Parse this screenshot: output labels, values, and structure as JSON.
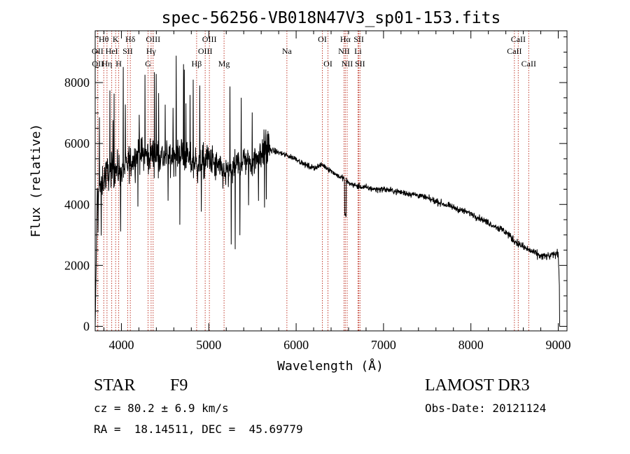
{
  "chart_data": {
    "type": "line",
    "title": "spec-56256-VB018N47V3_sp01-153.fits",
    "xlabel": "Wavelength (Å)",
    "ylabel": "Flux (relative)",
    "xlim": [
      3700,
      9100
    ],
    "ylim": [
      -150,
      9700
    ],
    "xticks": [
      4000,
      5000,
      6000,
      7000,
      8000,
      9000
    ],
    "xtick_labels": [
      "4000",
      "5000",
      "6000",
      "7000",
      "8000",
      "9000"
    ],
    "yticks": [
      0,
      2000,
      4000,
      6000,
      8000
    ],
    "ytick_labels": [
      "0",
      "2000",
      "4000",
      "6000",
      "8000"
    ],
    "spectrum_anchors": {
      "x": [
        3700,
        3720,
        3800,
        3900,
        4000,
        4100,
        4200,
        4300,
        4400,
        4500,
        4600,
        4700,
        4800,
        4900,
        5000,
        5100,
        5200,
        5300,
        5400,
        5500,
        5600,
        5680,
        5700,
        5800,
        5900,
        6000,
        6100,
        6200,
        6300,
        6400,
        6500,
        6560,
        6600,
        6700,
        6800,
        6900,
        7000,
        7200,
        7400,
        7600,
        7800,
        8000,
        8200,
        8400,
        8500,
        8600,
        8700,
        8800,
        8900,
        9000,
        9030
      ],
      "y": [
        0,
        4300,
        4900,
        5200,
        5100,
        5400,
        5700,
        5600,
        5700,
        5500,
        5600,
        5700,
        5400,
        5300,
        5500,
        5200,
        5000,
        5200,
        5500,
        5400,
        5700,
        6000,
        5800,
        5700,
        5600,
        5500,
        5300,
        5200,
        5300,
        5100,
        4900,
        4850,
        4700,
        4600,
        4550,
        4500,
        4500,
        4400,
        4300,
        4100,
        3900,
        3700,
        3400,
        3100,
        2800,
        2600,
        2450,
        2300,
        2300,
        2400,
        0
      ]
    },
    "spectral_lines": [
      {
        "name": "Hθ",
        "wavelength": 3798,
        "row": 0
      },
      {
        "name": "OII",
        "wavelength": 3727,
        "row": 1
      },
      {
        "name": "OII",
        "wavelength": 3730,
        "row": 2
      },
      {
        "name": "K",
        "wavelength": 3934,
        "row": 0
      },
      {
        "name": "HeI",
        "wavelength": 3889,
        "row": 1
      },
      {
        "name": "Hη",
        "wavelength": 3835,
        "row": 2
      },
      {
        "name": "H",
        "wavelength": 3969,
        "row": 2
      },
      {
        "name": "Hδ",
        "wavelength": 4102,
        "row": 0
      },
      {
        "name": "SII",
        "wavelength": 4072,
        "row": 1
      },
      {
        "name": "OIII",
        "wavelength": 4363,
        "row": 0
      },
      {
        "name": "Hγ",
        "wavelength": 4340,
        "row": 1
      },
      {
        "name": "G",
        "wavelength": 4305,
        "row": 2
      },
      {
        "name": "Hβ",
        "wavelength": 4861,
        "row": 2
      },
      {
        "name": "OIII",
        "wavelength": 5007,
        "row": 0
      },
      {
        "name": "OIII",
        "wavelength": 4959,
        "row": 1
      },
      {
        "name": "Mg",
        "wavelength": 5175,
        "row": 2
      },
      {
        "name": "Na",
        "wavelength": 5894,
        "row": 1
      },
      {
        "name": "OI",
        "wavelength": 6300,
        "row": 0
      },
      {
        "name": "OI",
        "wavelength": 6364,
        "row": 2
      },
      {
        "name": "Hα",
        "wavelength": 6563,
        "row": 0
      },
      {
        "name": "NII",
        "wavelength": 6548,
        "row": 1
      },
      {
        "name": "NII",
        "wavelength": 6584,
        "row": 2
      },
      {
        "name": "SII",
        "wavelength": 6717,
        "row": 0
      },
      {
        "name": "Li",
        "wavelength": 6708,
        "row": 1
      },
      {
        "name": "SII",
        "wavelength": 6731,
        "row": 2
      },
      {
        "name": "CaII",
        "wavelength": 8542,
        "row": 0
      },
      {
        "name": "CaII",
        "wavelength": 8498,
        "row": 1
      },
      {
        "name": "CaII",
        "wavelength": 8662,
        "row": 2
      }
    ]
  },
  "info": {
    "class": "STAR",
    "subclass": "F9",
    "survey": "LAMOST DR3",
    "cz": "cz = 80.2 ± 6.9 km/s",
    "obs_date": "Obs-Date: 20121124",
    "coords": "RA =  18.14511, DEC =  45.69779"
  },
  "colors": {
    "line_marker": "#c0392b",
    "spectrum": "#000000"
  }
}
